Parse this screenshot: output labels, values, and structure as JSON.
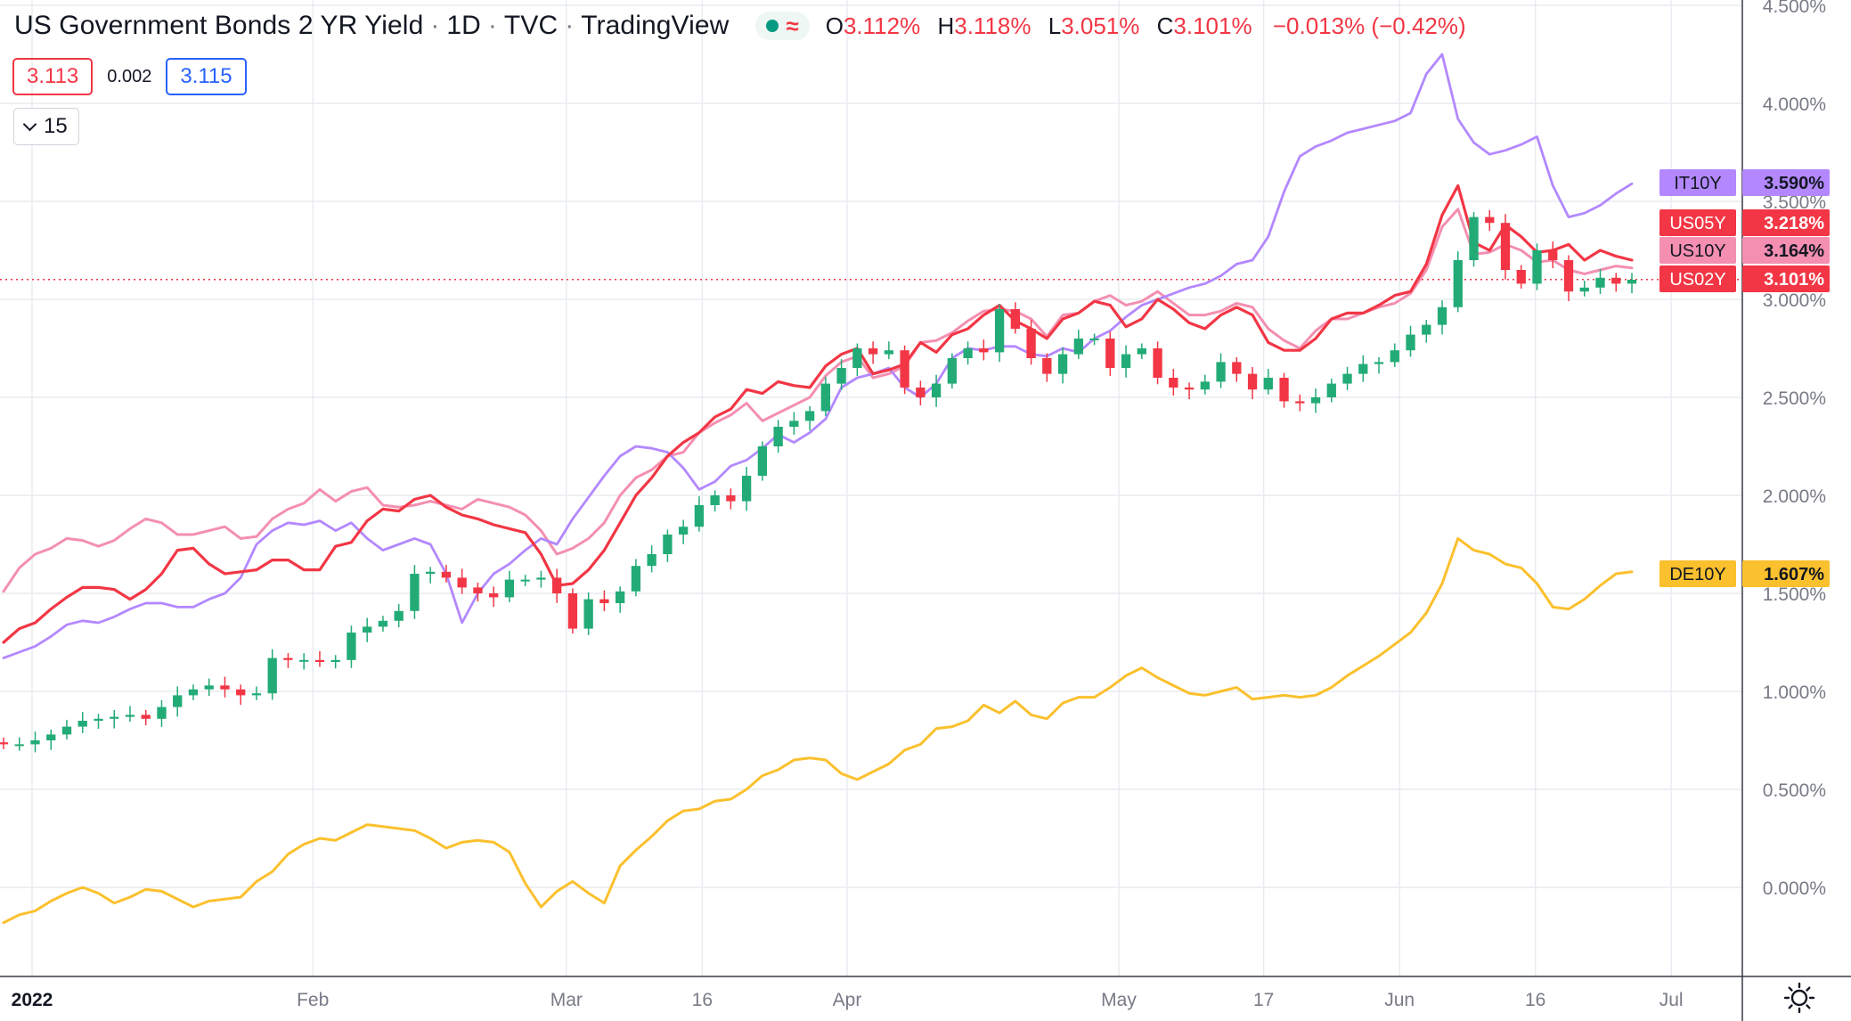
{
  "header": {
    "title": "US Government Bonds 2 YR Yield",
    "interval": "1D",
    "source": "TVC",
    "platform": "TradingView",
    "approx_symbol": "≈",
    "ohlc": {
      "open_label": "O",
      "open": "3.112%",
      "high_label": "H",
      "high": "3.118%",
      "low_label": "L",
      "low": "3.051%",
      "close_label": "C",
      "close": "3.101%",
      "change": "−0.013% (−0.42%)"
    }
  },
  "quote": {
    "sell": "3.113",
    "spread": "0.002",
    "buy": "3.115"
  },
  "indicator_toggle": {
    "count": "15"
  },
  "colors": {
    "up": "#22ab76",
    "down": "#f23645",
    "us05y": "#f23645",
    "us10y": "#f48fb1",
    "it10y": "#b388ff",
    "de10y": "#fbc02d",
    "grid": "#e8ecf1",
    "axis": "#787b86"
  },
  "chart_data": {
    "type": "line",
    "x_axis_labels": [
      "2022",
      "Feb",
      "Mar",
      "16",
      "Apr",
      "May",
      "17",
      "Jun",
      "16",
      "Jul"
    ],
    "y_axis_labels": [
      "4.500%",
      "4.000%",
      "3.500%",
      "3.000%",
      "2.500%",
      "2.000%",
      "1.500%",
      "1.000%",
      "0.500%",
      "0.000%"
    ],
    "ylim": [
      -0.45,
      4.5
    ],
    "grid": true,
    "last_price_line": 3.101,
    "series": [
      {
        "name": "US02Y",
        "type": "candlestick",
        "last_label": "3.101%",
        "values": [
          0.73,
          0.73,
          0.75,
          0.78,
          0.82,
          0.85,
          0.86,
          0.87,
          0.88,
          0.86,
          0.92,
          0.98,
          1.01,
          1.03,
          1.01,
          0.98,
          0.99,
          1.17,
          1.16,
          1.16,
          1.15,
          1.16,
          1.3,
          1.33,
          1.36,
          1.41,
          1.6,
          1.61,
          1.58,
          1.53,
          1.5,
          1.48,
          1.57,
          1.57,
          1.58,
          1.5,
          1.32,
          1.47,
          1.45,
          1.51,
          1.64,
          1.7,
          1.8,
          1.84,
          1.95,
          2.0,
          1.97,
          2.1,
          2.25,
          2.35,
          2.38,
          2.43,
          2.57,
          2.65,
          2.75,
          2.72,
          2.74,
          2.55,
          2.5,
          2.57,
          2.7,
          2.75,
          2.73,
          2.95,
          2.85,
          2.7,
          2.62,
          2.72,
          2.8,
          2.8,
          2.65,
          2.72,
          2.75,
          2.6,
          2.55,
          2.54,
          2.58,
          2.68,
          2.62,
          2.54,
          2.6,
          2.48,
          2.47,
          2.5,
          2.57,
          2.62,
          2.67,
          2.68,
          2.74,
          2.82,
          2.87,
          2.96,
          3.2,
          3.42,
          3.39,
          3.15,
          3.08,
          3.25,
          3.2,
          3.04,
          3.06,
          3.11,
          3.08,
          3.1
        ],
        "first_open": 0.74
      },
      {
        "name": "US05Y",
        "type": "line",
        "last_label": "3.218%",
        "values": [
          1.25,
          1.32,
          1.35,
          1.42,
          1.48,
          1.53,
          1.53,
          1.52,
          1.47,
          1.52,
          1.6,
          1.72,
          1.73,
          1.65,
          1.6,
          1.61,
          1.62,
          1.67,
          1.67,
          1.62,
          1.62,
          1.74,
          1.76,
          1.87,
          1.93,
          1.92,
          1.98,
          2.0,
          1.94,
          1.9,
          1.88,
          1.85,
          1.83,
          1.81,
          1.7,
          1.54,
          1.55,
          1.62,
          1.72,
          1.86,
          2.0,
          2.09,
          2.2,
          2.27,
          2.32,
          2.4,
          2.44,
          2.54,
          2.52,
          2.58,
          2.56,
          2.55,
          2.66,
          2.72,
          2.75,
          2.62,
          2.64,
          2.67,
          2.78,
          2.73,
          2.82,
          2.85,
          2.92,
          2.97,
          2.89,
          2.85,
          2.8,
          2.9,
          2.93,
          2.99,
          2.97,
          2.86,
          2.9,
          3.0,
          2.95,
          2.88,
          2.85,
          2.92,
          2.96,
          2.92,
          2.78,
          2.74,
          2.74,
          2.8,
          2.9,
          2.93,
          2.93,
          2.97,
          3.02,
          3.04,
          3.18,
          3.43,
          3.58,
          3.29,
          3.25,
          3.38,
          3.32,
          3.24,
          3.25,
          3.28,
          3.2,
          3.25,
          3.22,
          3.2
        ]
      },
      {
        "name": "US10Y",
        "type": "line",
        "last_label": "3.164%",
        "values": [
          1.51,
          1.63,
          1.7,
          1.73,
          1.78,
          1.77,
          1.74,
          1.77,
          1.83,
          1.88,
          1.86,
          1.8,
          1.8,
          1.82,
          1.84,
          1.78,
          1.79,
          1.88,
          1.93,
          1.96,
          2.03,
          1.97,
          2.02,
          2.04,
          1.95,
          1.94,
          1.95,
          1.97,
          1.95,
          1.93,
          1.98,
          1.96,
          1.94,
          1.9,
          1.82,
          1.7,
          1.73,
          1.78,
          1.86,
          2.0,
          2.09,
          2.13,
          2.2,
          2.22,
          2.32,
          2.37,
          2.41,
          2.47,
          2.38,
          2.42,
          2.46,
          2.5,
          2.61,
          2.68,
          2.71,
          2.6,
          2.62,
          2.66,
          2.78,
          2.79,
          2.83,
          2.89,
          2.94,
          2.95,
          2.94,
          2.9,
          2.81,
          2.92,
          2.93,
          2.99,
          3.02,
          2.97,
          2.99,
          3.04,
          2.98,
          2.92,
          2.92,
          2.94,
          2.98,
          2.96,
          2.85,
          2.79,
          2.75,
          2.84,
          2.9,
          2.9,
          2.93,
          2.96,
          2.98,
          3.03,
          3.15,
          3.37,
          3.46,
          3.23,
          3.24,
          3.28,
          3.25,
          3.19,
          3.2,
          3.15,
          3.13,
          3.15,
          3.17,
          3.16
        ]
      },
      {
        "name": "IT10Y",
        "type": "line",
        "last_label": "3.590%",
        "values": [
          1.17,
          1.2,
          1.23,
          1.28,
          1.34,
          1.36,
          1.35,
          1.38,
          1.42,
          1.45,
          1.45,
          1.43,
          1.43,
          1.47,
          1.5,
          1.58,
          1.75,
          1.82,
          1.86,
          1.85,
          1.87,
          1.82,
          1.86,
          1.78,
          1.72,
          1.75,
          1.78,
          1.75,
          1.6,
          1.35,
          1.5,
          1.6,
          1.65,
          1.72,
          1.78,
          1.75,
          1.88,
          1.99,
          2.1,
          2.2,
          2.25,
          2.24,
          2.22,
          2.14,
          2.03,
          2.07,
          2.15,
          2.18,
          2.24,
          2.31,
          2.27,
          2.32,
          2.39,
          2.55,
          2.6,
          2.62,
          2.65,
          2.55,
          2.5,
          2.57,
          2.7,
          2.75,
          2.74,
          2.76,
          2.76,
          2.72,
          2.71,
          2.75,
          2.73,
          2.8,
          2.84,
          2.91,
          2.97,
          3.0,
          3.03,
          3.06,
          3.08,
          3.12,
          3.18,
          3.2,
          3.32,
          3.55,
          3.73,
          3.78,
          3.81,
          3.85,
          3.87,
          3.89,
          3.91,
          3.95,
          4.15,
          4.25,
          3.92,
          3.8,
          3.74,
          3.76,
          3.79,
          3.83,
          3.58,
          3.42,
          3.44,
          3.48,
          3.54,
          3.59
        ]
      },
      {
        "name": "DE10Y",
        "type": "line",
        "last_label": "1.607%",
        "values": [
          -0.18,
          -0.14,
          -0.12,
          -0.07,
          -0.03,
          0.0,
          -0.03,
          -0.08,
          -0.05,
          -0.01,
          -0.02,
          -0.06,
          -0.1,
          -0.07,
          -0.06,
          -0.05,
          0.03,
          0.08,
          0.17,
          0.22,
          0.25,
          0.24,
          0.28,
          0.32,
          0.31,
          0.3,
          0.29,
          0.25,
          0.2,
          0.23,
          0.24,
          0.23,
          0.18,
          0.02,
          -0.1,
          -0.02,
          0.03,
          -0.03,
          -0.08,
          0.11,
          0.19,
          0.26,
          0.34,
          0.39,
          0.4,
          0.44,
          0.45,
          0.5,
          0.57,
          0.6,
          0.65,
          0.66,
          0.65,
          0.58,
          0.55,
          0.59,
          0.63,
          0.7,
          0.73,
          0.81,
          0.82,
          0.85,
          0.93,
          0.89,
          0.95,
          0.88,
          0.86,
          0.94,
          0.97,
          0.97,
          1.02,
          1.08,
          1.12,
          1.07,
          1.03,
          0.99,
          0.98,
          1.0,
          1.02,
          0.96,
          0.97,
          0.98,
          0.97,
          0.98,
          1.02,
          1.08,
          1.13,
          1.18,
          1.24,
          1.3,
          1.4,
          1.55,
          1.78,
          1.72,
          1.7,
          1.65,
          1.63,
          1.55,
          1.43,
          1.42,
          1.47,
          1.54,
          1.6,
          1.61
        ]
      }
    ]
  }
}
